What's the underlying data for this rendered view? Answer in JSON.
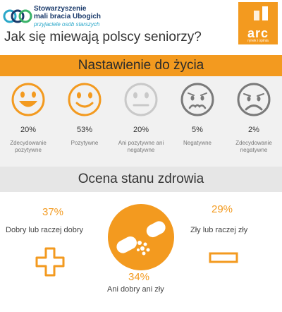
{
  "header": {
    "org_line1": "Stowarzyszenie",
    "org_line2": "mali bracia Ubogich",
    "org_tagline": "przyjaciele osób starszych",
    "arc_logo_text": "arc",
    "arc_logo_sub": "rynek i opinia"
  },
  "main_title": "Jak się miewają polscy seniorzy?",
  "colors": {
    "accent": "#f39a1f",
    "smiley_active": "#f39a1f",
    "smiley_inactive": "#c9c9c9",
    "smiley_dark": "#7a7a7a"
  },
  "chart_data": [
    {
      "type": "pictogram",
      "title": "Nastawienie do życia",
      "categories": [
        "Zdecydowanie pozytywne",
        "Pozytywne",
        "Ani pozytywne ani negatywne",
        "Negatywne",
        "Zdecydowanie negatywne"
      ],
      "values": [
        20,
        53,
        20,
        5,
        2
      ],
      "value_labels": [
        "20%",
        "53%",
        "20%",
        "5%",
        "2%"
      ],
      "icons": [
        "big-smile-face-icon",
        "smile-face-icon",
        "neutral-face-icon",
        "worried-face-icon",
        "sad-face-icon"
      ]
    },
    {
      "type": "pictogram",
      "title": "Ocena stanu zdrowia",
      "categories": [
        "Dobry lub raczej dobry",
        "Ani dobry ani zły",
        "Zły lub raczej zły"
      ],
      "values": [
        37,
        34,
        29
      ],
      "value_labels": [
        "37%",
        "34%",
        "29%"
      ],
      "icons": [
        "plus-icon",
        "pill-icon",
        "minus-icon"
      ]
    }
  ]
}
